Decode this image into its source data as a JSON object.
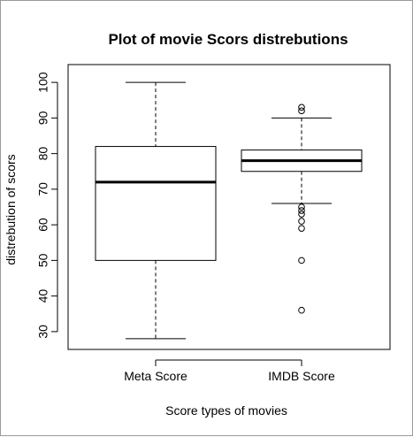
{
  "chart_data": {
    "type": "box",
    "title": "Plot of movie Scors distrebutions",
    "xlabel": "Score  types of movies",
    "ylabel": "distrebution of scors",
    "ylim": [
      25,
      105
    ],
    "yticks": [
      "30",
      "40",
      "50",
      "60",
      "70",
      "80",
      "90",
      "100"
    ],
    "grid": false,
    "series": [
      {
        "category": "Meta Score",
        "min": 28,
        "q1": 50,
        "median": 72,
        "q3": 82,
        "max": 100,
        "outliers": []
      },
      {
        "category": "IMDB Score",
        "min": 66,
        "q1": 75,
        "median": 78,
        "q3": 81,
        "max": 90,
        "outliers": [
          92,
          93,
          65,
          64,
          63,
          61,
          59,
          50,
          36
        ]
      }
    ]
  }
}
